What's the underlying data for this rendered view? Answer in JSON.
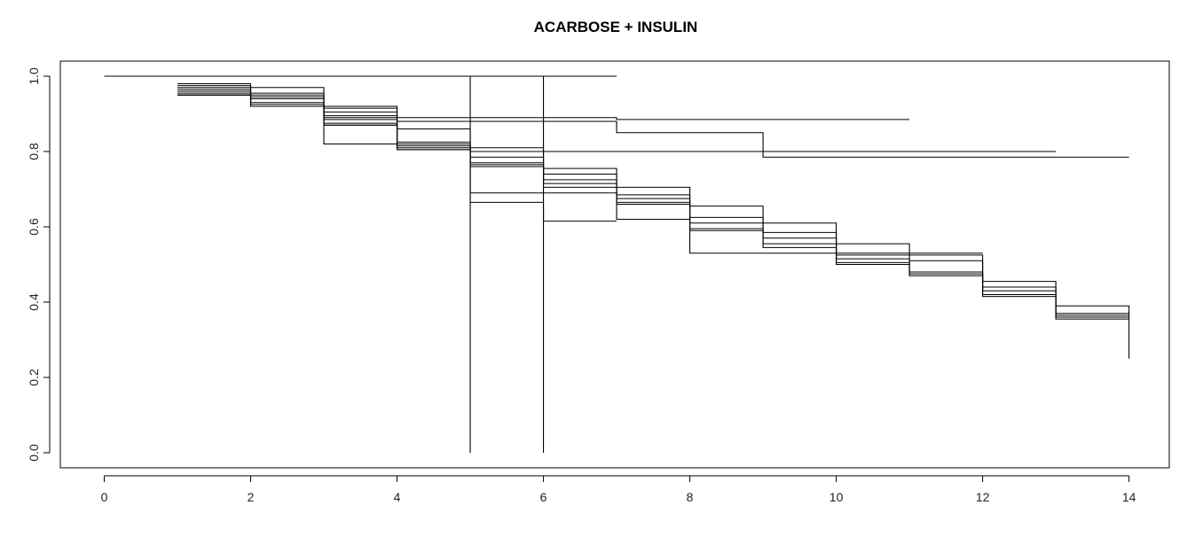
{
  "chart_data": {
    "type": "line",
    "title": "ACARBOSE + INSULIN",
    "xlabel": "",
    "ylabel": "",
    "xlim": [
      -0.6,
      14.55
    ],
    "ylim": [
      -0.04,
      1.04
    ],
    "x_ticks": [
      0,
      2,
      4,
      6,
      8,
      10,
      12,
      14
    ],
    "x_tick_labels": [
      "0",
      "2",
      "4",
      "6",
      "8",
      "10",
      "12",
      "14"
    ],
    "y_ticks": [
      0.0,
      0.2,
      0.4,
      0.6,
      0.8,
      1.0
    ],
    "y_tick_labels": [
      "0.0",
      "0.2",
      "0.4",
      "0.6",
      "0.8",
      "1.0"
    ],
    "grid": false,
    "line_color": "#000000",
    "series": [
      {
        "x": [
          0,
          7
        ],
        "y": [
          1.0,
          1.0
        ]
      },
      {
        "x": [
          0,
          5
        ],
        "y": [
          1.0,
          0.0
        ]
      },
      {
        "x": [
          0,
          6
        ],
        "y": [
          1.0,
          0.0
        ]
      },
      {
        "x": [
          1,
          2,
          3,
          4,
          5,
          6,
          7,
          11
        ],
        "y": [
          0.98,
          0.97,
          0.92,
          0.89,
          0.89,
          0.89,
          0.885,
          0.885
        ]
      },
      {
        "x": [
          1,
          2,
          3,
          4,
          5,
          7,
          9,
          14
        ],
        "y": [
          0.975,
          0.955,
          0.915,
          0.88,
          0.88,
          0.85,
          0.785,
          0.785
        ]
      },
      {
        "x": [
          1,
          2,
          3,
          4,
          5,
          6,
          13
        ],
        "y": [
          0.97,
          0.95,
          0.905,
          0.86,
          0.81,
          0.8,
          0.8
        ]
      },
      {
        "x": [
          1,
          2,
          3,
          4,
          5,
          6,
          7,
          8,
          9,
          10,
          11,
          12,
          13,
          14
        ],
        "y": [
          0.965,
          0.945,
          0.895,
          0.825,
          0.8,
          0.755,
          0.705,
          0.655,
          0.61,
          0.555,
          0.525,
          0.455,
          0.39,
          0.25
        ]
      },
      {
        "x": [
          1,
          2,
          3,
          4,
          5,
          6,
          7,
          8,
          9,
          10,
          11,
          12,
          13,
          14
        ],
        "y": [
          0.96,
          0.94,
          0.89,
          0.82,
          0.785,
          0.74,
          0.685,
          0.625,
          0.585,
          0.525,
          0.51,
          0.44,
          0.37,
          0.37
        ]
      },
      {
        "x": [
          1,
          2,
          3,
          4,
          5,
          6,
          7,
          8,
          9,
          10,
          11,
          12,
          13,
          14
        ],
        "y": [
          0.955,
          0.93,
          0.885,
          0.815,
          0.77,
          0.725,
          0.675,
          0.61,
          0.57,
          0.515,
          0.48,
          0.43,
          0.365,
          0.365
        ]
      },
      {
        "x": [
          1,
          2,
          3,
          4,
          5,
          6,
          7,
          8,
          9,
          10,
          11,
          12,
          13,
          14
        ],
        "y": [
          0.95,
          0.925,
          0.875,
          0.81,
          0.765,
          0.715,
          0.665,
          0.595,
          0.555,
          0.505,
          0.475,
          0.42,
          0.36,
          0.36
        ]
      },
      {
        "x": [
          1,
          2,
          3,
          4,
          5,
          6,
          7,
          8,
          9,
          10,
          11,
          12,
          13,
          14
        ],
        "y": [
          0.95,
          0.92,
          0.87,
          0.805,
          0.76,
          0.705,
          0.66,
          0.59,
          0.545,
          0.5,
          0.47,
          0.415,
          0.355,
          0.355
        ]
      },
      {
        "x": [
          1,
          2,
          3,
          5,
          6,
          7,
          8,
          9,
          10,
          11,
          12
        ],
        "y": [
          0.95,
          0.92,
          0.82,
          0.69,
          0.69,
          0.62,
          0.53,
          0.53,
          0.53,
          0.53,
          0.53
        ]
      },
      {
        "x": [
          1,
          2,
          3,
          4,
          5,
          6,
          7
        ],
        "y": [
          0.95,
          0.92,
          0.87,
          0.805,
          0.665,
          0.615,
          0.615
        ]
      }
    ]
  }
}
